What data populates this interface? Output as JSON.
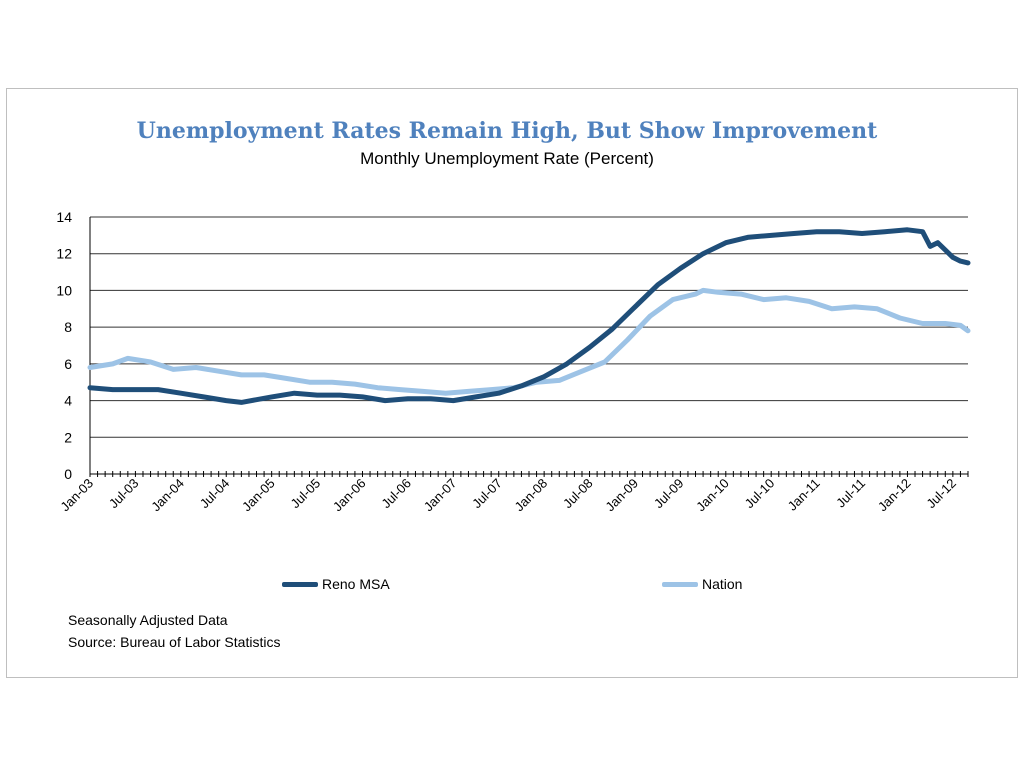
{
  "chart_data": {
    "type": "line",
    "title": "Unemployment Rates Remain High, But Show Improvement",
    "subtitle": "Monthly Unemployment Rate (Percent)",
    "x_start": "Jan-03",
    "x_end": "Sep-12",
    "x_tick_labels": [
      "Jan-03",
      "Jul-03",
      "Jan-04",
      "Jul-04",
      "Jan-05",
      "Jul-05",
      "Jan-06",
      "Jul-06",
      "Jan-07",
      "Jul-07",
      "Jan-08",
      "Jul-08",
      "Jan-09",
      "Jul-09",
      "Jan-10",
      "Jul-10",
      "Jan-11",
      "Jul-11",
      "Jan-12",
      "Jul-12"
    ],
    "y_ticks": [
      0,
      2,
      4,
      6,
      8,
      10,
      12,
      14
    ],
    "ylim": [
      0,
      14
    ],
    "grid": true,
    "legend_position": "bottom",
    "series": [
      {
        "name": "Reno MSA",
        "color": "#1f4e79",
        "points": [
          [
            "Jan-03",
            4.7
          ],
          [
            "Apr-03",
            4.6
          ],
          [
            "Jul-03",
            4.6
          ],
          [
            "Oct-03",
            4.6
          ],
          [
            "Jan-04",
            4.4
          ],
          [
            "Apr-04",
            4.2
          ],
          [
            "Jul-04",
            4.0
          ],
          [
            "Sep-04",
            3.9
          ],
          [
            "Jan-05",
            4.2
          ],
          [
            "Apr-05",
            4.4
          ],
          [
            "Jul-05",
            4.3
          ],
          [
            "Oct-05",
            4.3
          ],
          [
            "Jan-06",
            4.2
          ],
          [
            "Apr-06",
            4.0
          ],
          [
            "Jul-06",
            4.1
          ],
          [
            "Oct-06",
            4.1
          ],
          [
            "Jan-07",
            4.0
          ],
          [
            "Apr-07",
            4.2
          ],
          [
            "Jul-07",
            4.4
          ],
          [
            "Oct-07",
            4.8
          ],
          [
            "Jan-08",
            5.3
          ],
          [
            "Apr-08",
            6.0
          ],
          [
            "Jul-08",
            6.9
          ],
          [
            "Oct-08",
            7.9
          ],
          [
            "Jan-09",
            9.1
          ],
          [
            "Apr-09",
            10.3
          ],
          [
            "Jul-09",
            11.2
          ],
          [
            "Oct-09",
            12.0
          ],
          [
            "Jan-10",
            12.6
          ],
          [
            "Apr-10",
            12.9
          ],
          [
            "Jul-10",
            13.0
          ],
          [
            "Oct-10",
            13.1
          ],
          [
            "Jan-11",
            13.2
          ],
          [
            "Apr-11",
            13.2
          ],
          [
            "Jul-11",
            13.1
          ],
          [
            "Oct-11",
            13.2
          ],
          [
            "Jan-12",
            13.3
          ],
          [
            "Mar-12",
            13.2
          ],
          [
            "Apr-12",
            12.4
          ],
          [
            "May-12",
            12.6
          ],
          [
            "Jun-12",
            12.2
          ],
          [
            "Jul-12",
            11.8
          ],
          [
            "Aug-12",
            11.6
          ],
          [
            "Sep-12",
            11.5
          ]
        ]
      },
      {
        "name": "Nation",
        "color": "#9dc3e6",
        "points": [
          [
            "Jan-03",
            5.8
          ],
          [
            "Apr-03",
            6.0
          ],
          [
            "Jun-03",
            6.3
          ],
          [
            "Sep-03",
            6.1
          ],
          [
            "Dec-03",
            5.7
          ],
          [
            "Mar-04",
            5.8
          ],
          [
            "Jun-04",
            5.6
          ],
          [
            "Sep-04",
            5.4
          ],
          [
            "Dec-04",
            5.4
          ],
          [
            "Mar-05",
            5.2
          ],
          [
            "Jun-05",
            5.0
          ],
          [
            "Sep-05",
            5.0
          ],
          [
            "Dec-05",
            4.9
          ],
          [
            "Mar-06",
            4.7
          ],
          [
            "Jun-06",
            4.6
          ],
          [
            "Sep-06",
            4.5
          ],
          [
            "Dec-06",
            4.4
          ],
          [
            "Mar-07",
            4.5
          ],
          [
            "Jun-07",
            4.6
          ],
          [
            "Sep-07",
            4.7
          ],
          [
            "Dec-07",
            5.0
          ],
          [
            "Mar-08",
            5.1
          ],
          [
            "Jun-08",
            5.6
          ],
          [
            "Sep-08",
            6.1
          ],
          [
            "Dec-08",
            7.3
          ],
          [
            "Mar-09",
            8.6
          ],
          [
            "Jun-09",
            9.5
          ],
          [
            "Sep-09",
            9.8
          ],
          [
            "Oct-09",
            10.0
          ],
          [
            "Dec-09",
            9.9
          ],
          [
            "Mar-10",
            9.8
          ],
          [
            "Jun-10",
            9.5
          ],
          [
            "Sep-10",
            9.6
          ],
          [
            "Dec-10",
            9.4
          ],
          [
            "Mar-11",
            9.0
          ],
          [
            "Jun-11",
            9.1
          ],
          [
            "Sep-11",
            9.0
          ],
          [
            "Dec-11",
            8.5
          ],
          [
            "Mar-12",
            8.2
          ],
          [
            "Jun-12",
            8.2
          ],
          [
            "Aug-12",
            8.1
          ],
          [
            "Sep-12",
            7.8
          ]
        ]
      }
    ]
  },
  "notes": {
    "line1": "Seasonally Adjusted Data",
    "line2": "Source: Bureau of Labor Statistics"
  }
}
